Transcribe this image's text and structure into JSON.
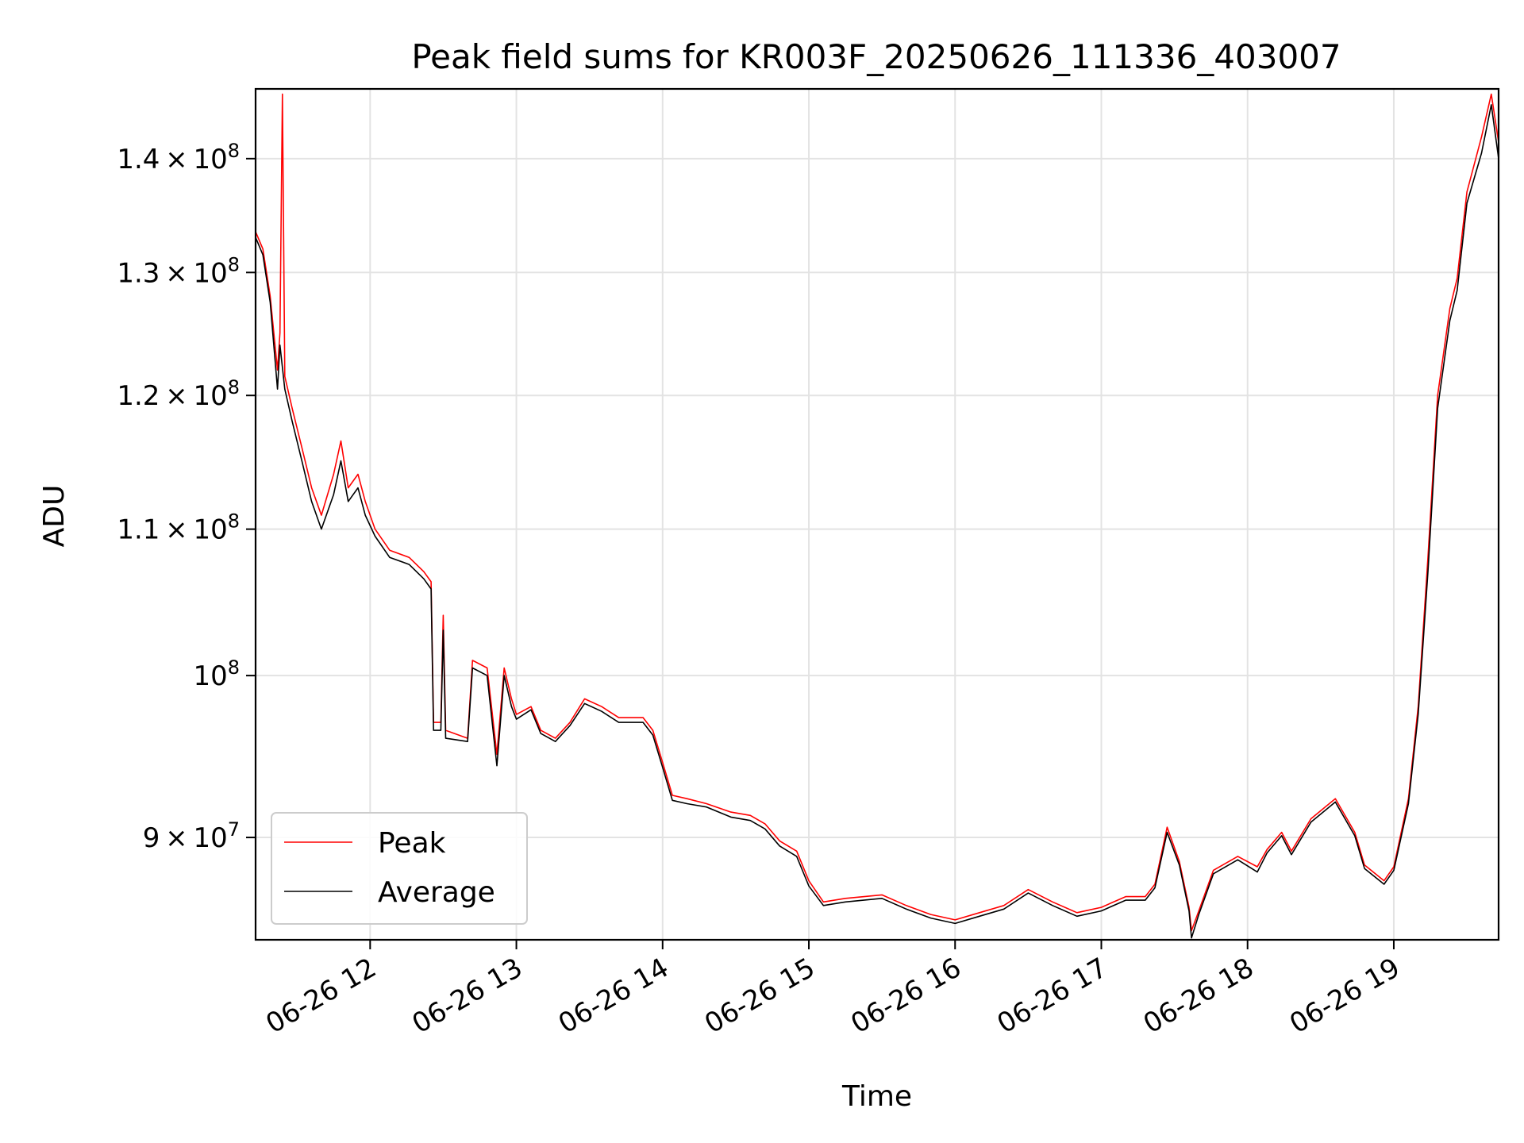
{
  "chart_data": {
    "type": "line",
    "title": "Peak field sums for KR003F_20250626_111336_403007",
    "xlabel": "Time",
    "ylabel": "ADU",
    "yscale": "log",
    "grid": true,
    "legend_position": "lower-left",
    "xlim": [
      "2025-06-26 11:13",
      "2025-06-26 19:43"
    ],
    "ylim": [
      84200000,
      146500000
    ],
    "x_ticks": [
      {
        "value": "2025-06-26 12:00",
        "label": "06-26 12"
      },
      {
        "value": "2025-06-26 13:00",
        "label": "06-26 13"
      },
      {
        "value": "2025-06-26 14:00",
        "label": "06-26 14"
      },
      {
        "value": "2025-06-26 15:00",
        "label": "06-26 15"
      },
      {
        "value": "2025-06-26 16:00",
        "label": "06-26 16"
      },
      {
        "value": "2025-06-26 17:00",
        "label": "06-26 17"
      },
      {
        "value": "2025-06-26 18:00",
        "label": "06-26 18"
      },
      {
        "value": "2025-06-26 19:00",
        "label": "06-26 19"
      }
    ],
    "y_ticks": [
      {
        "value": 90000000,
        "mantissa": "9",
        "exponent": "7"
      },
      {
        "value": 100000000,
        "mantissa": "",
        "exponent": "8"
      },
      {
        "value": 110000000,
        "mantissa": "1.1",
        "exponent": "8"
      },
      {
        "value": 120000000,
        "mantissa": "1.2",
        "exponent": "8"
      },
      {
        "value": 130000000,
        "mantissa": "1.3",
        "exponent": "8"
      },
      {
        "value": 140000000,
        "mantissa": "1.4",
        "exponent": "8"
      }
    ],
    "series": [
      {
        "name": "Peak",
        "color": "#ff0000",
        "points": [
          [
            "2025-06-26 11:13",
            133500000
          ],
          [
            "2025-06-26 11:16",
            132000000
          ],
          [
            "2025-06-26 11:19",
            128000000
          ],
          [
            "2025-06-26 11:22",
            122000000
          ],
          [
            "2025-06-26 11:23",
            125000000
          ],
          [
            "2025-06-26 11:24",
            146000000
          ],
          [
            "2025-06-26 11:25",
            121500000
          ],
          [
            "2025-06-26 11:28",
            119000000
          ],
          [
            "2025-06-26 11:32",
            116000000
          ],
          [
            "2025-06-26 11:36",
            113000000
          ],
          [
            "2025-06-26 11:40",
            111000000
          ],
          [
            "2025-06-26 11:45",
            114000000
          ],
          [
            "2025-06-26 11:48",
            116500000
          ],
          [
            "2025-06-26 11:51",
            113000000
          ],
          [
            "2025-06-26 11:55",
            114000000
          ],
          [
            "2025-06-26 11:58",
            112000000
          ],
          [
            "2025-06-26 12:02",
            110000000
          ],
          [
            "2025-06-26 12:08",
            108500000
          ],
          [
            "2025-06-26 12:16",
            108000000
          ],
          [
            "2025-06-26 12:22",
            107000000
          ],
          [
            "2025-06-26 12:25",
            106300000
          ],
          [
            "2025-06-26 12:26",
            97000000
          ],
          [
            "2025-06-26 12:29",
            97000000
          ],
          [
            "2025-06-26 12:30",
            104000000
          ],
          [
            "2025-06-26 12:31",
            96500000
          ],
          [
            "2025-06-26 12:40",
            96000000
          ],
          [
            "2025-06-26 12:42",
            101000000
          ],
          [
            "2025-06-26 12:48",
            100500000
          ],
          [
            "2025-06-26 12:52",
            95000000
          ],
          [
            "2025-06-26 12:55",
            100500000
          ],
          [
            "2025-06-26 12:58",
            98500000
          ],
          [
            "2025-06-26 13:00",
            97500000
          ],
          [
            "2025-06-26 13:06",
            98000000
          ],
          [
            "2025-06-26 13:10",
            96500000
          ],
          [
            "2025-06-26 13:16",
            96000000
          ],
          [
            "2025-06-26 13:22",
            97000000
          ],
          [
            "2025-06-26 13:28",
            98500000
          ],
          [
            "2025-06-26 13:35",
            98000000
          ],
          [
            "2025-06-26 13:42",
            97300000
          ],
          [
            "2025-06-26 13:52",
            97300000
          ],
          [
            "2025-06-26 13:56",
            96500000
          ],
          [
            "2025-06-26 14:00",
            94500000
          ],
          [
            "2025-06-26 14:04",
            92500000
          ],
          [
            "2025-06-26 14:10",
            92300000
          ],
          [
            "2025-06-26 14:18",
            92000000
          ],
          [
            "2025-06-26 14:28",
            91500000
          ],
          [
            "2025-06-26 14:36",
            91300000
          ],
          [
            "2025-06-26 14:42",
            90800000
          ],
          [
            "2025-06-26 14:48",
            89800000
          ],
          [
            "2025-06-26 14:55",
            89200000
          ],
          [
            "2025-06-26 15:00",
            87500000
          ],
          [
            "2025-06-26 15:06",
            86300000
          ],
          [
            "2025-06-26 15:15",
            86500000
          ],
          [
            "2025-06-26 15:30",
            86700000
          ],
          [
            "2025-06-26 15:40",
            86100000
          ],
          [
            "2025-06-26 15:50",
            85600000
          ],
          [
            "2025-06-26 16:00",
            85300000
          ],
          [
            "2025-06-26 16:10",
            85700000
          ],
          [
            "2025-06-26 16:20",
            86100000
          ],
          [
            "2025-06-26 16:30",
            87000000
          ],
          [
            "2025-06-26 16:40",
            86300000
          ],
          [
            "2025-06-26 16:50",
            85700000
          ],
          [
            "2025-06-26 17:00",
            86000000
          ],
          [
            "2025-06-26 17:10",
            86600000
          ],
          [
            "2025-06-26 17:18",
            86600000
          ],
          [
            "2025-06-26 17:22",
            87300000
          ],
          [
            "2025-06-26 17:27",
            90600000
          ],
          [
            "2025-06-26 17:32",
            88600000
          ],
          [
            "2025-06-26 17:36",
            86000000
          ],
          [
            "2025-06-26 17:37",
            84700000
          ],
          [
            "2025-06-26 17:40",
            85800000
          ],
          [
            "2025-06-26 17:46",
            88100000
          ],
          [
            "2025-06-26 17:56",
            88900000
          ],
          [
            "2025-06-26 18:04",
            88300000
          ],
          [
            "2025-06-26 18:08",
            89300000
          ],
          [
            "2025-06-26 18:14",
            90300000
          ],
          [
            "2025-06-26 18:18",
            89200000
          ],
          [
            "2025-06-26 18:26",
            91100000
          ],
          [
            "2025-06-26 18:36",
            92300000
          ],
          [
            "2025-06-26 18:44",
            90300000
          ],
          [
            "2025-06-26 18:48",
            88400000
          ],
          [
            "2025-06-26 18:56",
            87500000
          ],
          [
            "2025-06-26 19:00",
            88300000
          ],
          [
            "2025-06-26 19:06",
            92300000
          ],
          [
            "2025-06-26 19:10",
            98000000
          ],
          [
            "2025-06-26 19:14",
            108000000
          ],
          [
            "2025-06-26 19:18",
            120000000
          ],
          [
            "2025-06-26 19:23",
            127000000
          ],
          [
            "2025-06-26 19:26",
            129500000
          ],
          [
            "2025-06-26 19:30",
            137000000
          ],
          [
            "2025-06-26 19:36",
            142000000
          ],
          [
            "2025-06-26 19:40",
            146000000
          ],
          [
            "2025-06-26 19:43",
            141500000
          ]
        ]
      },
      {
        "name": "Average",
        "color": "#000000",
        "points": [
          [
            "2025-06-26 11:13",
            133000000
          ],
          [
            "2025-06-26 11:16",
            131500000
          ],
          [
            "2025-06-26 11:19",
            127500000
          ],
          [
            "2025-06-26 11:22",
            120500000
          ],
          [
            "2025-06-26 11:23",
            124000000
          ],
          [
            "2025-06-26 11:25",
            120500000
          ],
          [
            "2025-06-26 11:28",
            118000000
          ],
          [
            "2025-06-26 11:32",
            115000000
          ],
          [
            "2025-06-26 11:36",
            112000000
          ],
          [
            "2025-06-26 11:40",
            110000000
          ],
          [
            "2025-06-26 11:45",
            112500000
          ],
          [
            "2025-06-26 11:48",
            115000000
          ],
          [
            "2025-06-26 11:51",
            112000000
          ],
          [
            "2025-06-26 11:55",
            113000000
          ],
          [
            "2025-06-26 11:58",
            111000000
          ],
          [
            "2025-06-26 12:02",
            109500000
          ],
          [
            "2025-06-26 12:08",
            108000000
          ],
          [
            "2025-06-26 12:16",
            107500000
          ],
          [
            "2025-06-26 12:22",
            106500000
          ],
          [
            "2025-06-26 12:25",
            105800000
          ],
          [
            "2025-06-26 12:26",
            96500000
          ],
          [
            "2025-06-26 12:29",
            96500000
          ],
          [
            "2025-06-26 12:30",
            103000000
          ],
          [
            "2025-06-26 12:31",
            96000000
          ],
          [
            "2025-06-26 12:40",
            95800000
          ],
          [
            "2025-06-26 12:42",
            100500000
          ],
          [
            "2025-06-26 12:48",
            100000000
          ],
          [
            "2025-06-26 12:52",
            94300000
          ],
          [
            "2025-06-26 12:55",
            100000000
          ],
          [
            "2025-06-26 12:58",
            98000000
          ],
          [
            "2025-06-26 13:00",
            97200000
          ],
          [
            "2025-06-26 13:06",
            97800000
          ],
          [
            "2025-06-26 13:10",
            96300000
          ],
          [
            "2025-06-26 13:16",
            95800000
          ],
          [
            "2025-06-26 13:22",
            96800000
          ],
          [
            "2025-06-26 13:28",
            98200000
          ],
          [
            "2025-06-26 13:35",
            97700000
          ],
          [
            "2025-06-26 13:42",
            97000000
          ],
          [
            "2025-06-26 13:52",
            97000000
          ],
          [
            "2025-06-26 13:56",
            96200000
          ],
          [
            "2025-06-26 14:00",
            94200000
          ],
          [
            "2025-06-26 14:04",
            92200000
          ],
          [
            "2025-06-26 14:10",
            92000000
          ],
          [
            "2025-06-26 14:18",
            91800000
          ],
          [
            "2025-06-26 14:28",
            91200000
          ],
          [
            "2025-06-26 14:36",
            91000000
          ],
          [
            "2025-06-26 14:42",
            90500000
          ],
          [
            "2025-06-26 14:48",
            89500000
          ],
          [
            "2025-06-26 14:55",
            88900000
          ],
          [
            "2025-06-26 15:00",
            87200000
          ],
          [
            "2025-06-26 15:06",
            86100000
          ],
          [
            "2025-06-26 15:15",
            86300000
          ],
          [
            "2025-06-26 15:30",
            86500000
          ],
          [
            "2025-06-26 15:40",
            85900000
          ],
          [
            "2025-06-26 15:50",
            85400000
          ],
          [
            "2025-06-26 16:00",
            85100000
          ],
          [
            "2025-06-26 16:10",
            85500000
          ],
          [
            "2025-06-26 16:20",
            85900000
          ],
          [
            "2025-06-26 16:30",
            86800000
          ],
          [
            "2025-06-26 16:40",
            86100000
          ],
          [
            "2025-06-26 16:50",
            85500000
          ],
          [
            "2025-06-26 17:00",
            85800000
          ],
          [
            "2025-06-26 17:10",
            86400000
          ],
          [
            "2025-06-26 17:18",
            86400000
          ],
          [
            "2025-06-26 17:22",
            87100000
          ],
          [
            "2025-06-26 17:27",
            90300000
          ],
          [
            "2025-06-26 17:32",
            88400000
          ],
          [
            "2025-06-26 17:36",
            85800000
          ],
          [
            "2025-06-26 17:37",
            84300000
          ],
          [
            "2025-06-26 17:40",
            85600000
          ],
          [
            "2025-06-26 17:46",
            87900000
          ],
          [
            "2025-06-26 17:56",
            88700000
          ],
          [
            "2025-06-26 18:04",
            88000000
          ],
          [
            "2025-06-26 18:08",
            89100000
          ],
          [
            "2025-06-26 18:14",
            90100000
          ],
          [
            "2025-06-26 18:18",
            89000000
          ],
          [
            "2025-06-26 18:26",
            90900000
          ],
          [
            "2025-06-26 18:36",
            92100000
          ],
          [
            "2025-06-26 18:44",
            90100000
          ],
          [
            "2025-06-26 18:48",
            88200000
          ],
          [
            "2025-06-26 18:56",
            87300000
          ],
          [
            "2025-06-26 19:00",
            88100000
          ],
          [
            "2025-06-26 19:06",
            92000000
          ],
          [
            "2025-06-26 19:10",
            97500000
          ],
          [
            "2025-06-26 19:14",
            107000000
          ],
          [
            "2025-06-26 19:18",
            119000000
          ],
          [
            "2025-06-26 19:23",
            126000000
          ],
          [
            "2025-06-26 19:26",
            128500000
          ],
          [
            "2025-06-26 19:30",
            136000000
          ],
          [
            "2025-06-26 19:36",
            140500000
          ],
          [
            "2025-06-26 19:40",
            145000000
          ],
          [
            "2025-06-26 19:43",
            140000000
          ]
        ]
      }
    ]
  }
}
